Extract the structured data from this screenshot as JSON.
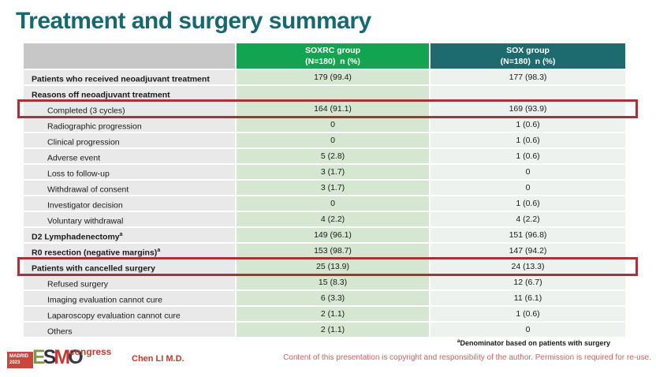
{
  "slide": {
    "title": "Treatment and surgery summary"
  },
  "table": {
    "columns": [
      {
        "line1": "SOXRC group",
        "line2": "(N=180)  n (%)",
        "color": "#13a452"
      },
      {
        "line1": "SOX group",
        "line2": "(N=180)  n (%)",
        "color": "#1d6b6e"
      }
    ],
    "rows": [
      {
        "label": "Patients who received neoadjuvant treatment",
        "sup": "",
        "bold": true,
        "indent": false,
        "highlight": false,
        "soxrc": "179 (99.4)",
        "sox": "177 (98.3)"
      },
      {
        "label": "Reasons off neoadjuvant treatment",
        "sup": "",
        "bold": true,
        "indent": false,
        "highlight": false,
        "soxrc": "",
        "sox": ""
      },
      {
        "label": "Completed (3 cycles)",
        "sup": "",
        "bold": false,
        "indent": true,
        "highlight": true,
        "soxrc": "164 (91.1)",
        "sox": "169 (93.9)"
      },
      {
        "label": "Radiographic progression",
        "sup": "",
        "bold": false,
        "indent": true,
        "highlight": false,
        "soxrc": "0",
        "sox": "1 (0.6)"
      },
      {
        "label": "Clinical progression",
        "sup": "",
        "bold": false,
        "indent": true,
        "highlight": false,
        "soxrc": "0",
        "sox": "1 (0.6)"
      },
      {
        "label": "Adverse event",
        "sup": "",
        "bold": false,
        "indent": true,
        "highlight": false,
        "soxrc": "5 (2.8)",
        "sox": "1 (0.6)"
      },
      {
        "label": "Loss to follow-up",
        "sup": "",
        "bold": false,
        "indent": true,
        "highlight": false,
        "soxrc": "3 (1.7)",
        "sox": "0"
      },
      {
        "label": "Withdrawal of consent",
        "sup": "",
        "bold": false,
        "indent": true,
        "highlight": false,
        "soxrc": "3 (1.7)",
        "sox": "0"
      },
      {
        "label": "Investigator decision",
        "sup": "",
        "bold": false,
        "indent": true,
        "highlight": false,
        "soxrc": "0",
        "sox": "1 (0.6)"
      },
      {
        "label": "Voluntary withdrawal",
        "sup": "",
        "bold": false,
        "indent": true,
        "highlight": false,
        "soxrc": "4 (2.2)",
        "sox": "4 (2.2)"
      },
      {
        "label": "D2 Lymphadenectomy",
        "sup": "a",
        "bold": true,
        "indent": false,
        "highlight": false,
        "soxrc": "149 (96.1)",
        "sox": "151 (96.8)"
      },
      {
        "label": "R0 resection (negative margins)",
        "sup": "a",
        "bold": true,
        "indent": false,
        "highlight": false,
        "soxrc": "153 (98.7)",
        "sox": "147 (94.2)"
      },
      {
        "label": "Patients with cancelled surgery",
        "sup": "",
        "bold": true,
        "indent": false,
        "highlight": true,
        "soxrc": "25 (13.9)",
        "sox": "24 (13.3)"
      },
      {
        "label": "Refused surgery",
        "sup": "",
        "bold": false,
        "indent": true,
        "highlight": false,
        "soxrc": "15 (8.3)",
        "sox": "12 (6.7)"
      },
      {
        "label": "Imaging evaluation cannot cure",
        "sup": "",
        "bold": false,
        "indent": true,
        "highlight": false,
        "soxrc": "6 (3.3)",
        "sox": "11 (6.1)"
      },
      {
        "label": "Laparoscopy evaluation cannot cure",
        "sup": "",
        "bold": false,
        "indent": true,
        "highlight": false,
        "soxrc": "2 (1.1)",
        "sox": "1 (0.6)"
      },
      {
        "label": "Others",
        "sup": "",
        "bold": false,
        "indent": true,
        "highlight": false,
        "soxrc": "2 (1.1)",
        "sox": "0"
      }
    ]
  },
  "footnote": {
    "sup": "a",
    "text": "Denominator based on patients with surgery"
  },
  "footer": {
    "author": "Chen LI M.D.",
    "copyright": "Content of this presentation is copyright and responsibility of the author. Permission is required for re-use.",
    "logo": {
      "madrid": "MADRID",
      "year": "2023",
      "letters": [
        "E",
        "S",
        "M",
        "O"
      ],
      "congress": "congress"
    }
  },
  "colors": {
    "title": "#17696f",
    "header_soxrc": "#13a452",
    "header_sox": "#1d6b6e",
    "header_label_bg": "#c7c7c7",
    "label_cell_bg": "#e9e9e9",
    "soxrc_cell_bg": "#d6e7d1",
    "sox_cell_bg": "#eef2ef",
    "highlight_border": "#a53531",
    "footer_red": "#c23b31",
    "copyright_red": "#d0605e"
  }
}
